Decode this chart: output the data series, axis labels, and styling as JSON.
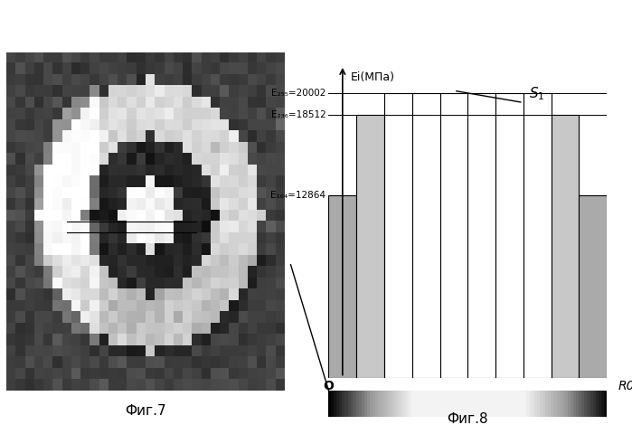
{
  "fig7_caption": "Фиг.7",
  "fig8_caption": "Фиг.8",
  "ylabel": "Ei(МПа)",
  "xlabel": "R0",
  "origin_label": "O",
  "s1_label": "S1",
  "e255_label": "E₂₅₅=20002",
  "e236_label": "E₂₃₆=18512",
  "e164_label": "E₁₆₄=12864",
  "e255_val": 20002,
  "e236_val": 18512,
  "e164_val": 12864,
  "ymax": 22000,
  "bar_heights": [
    12864,
    18512,
    20002,
    20002,
    20002,
    20002,
    20002,
    20002,
    18512,
    12864
  ],
  "bar_colors": [
    "#aaaaaa",
    "#c8c8c8",
    "#ffffff",
    "#ffffff",
    "#ffffff",
    "#ffffff",
    "#ffffff",
    "#ffffff",
    "#c8c8c8",
    "#aaaaaa"
  ],
  "bg_color": "#f0f0f0",
  "stripe_colors": [
    "#888888",
    "#bbbbbb",
    "#dddddd",
    "#bbbbbb",
    "#888888"
  ]
}
